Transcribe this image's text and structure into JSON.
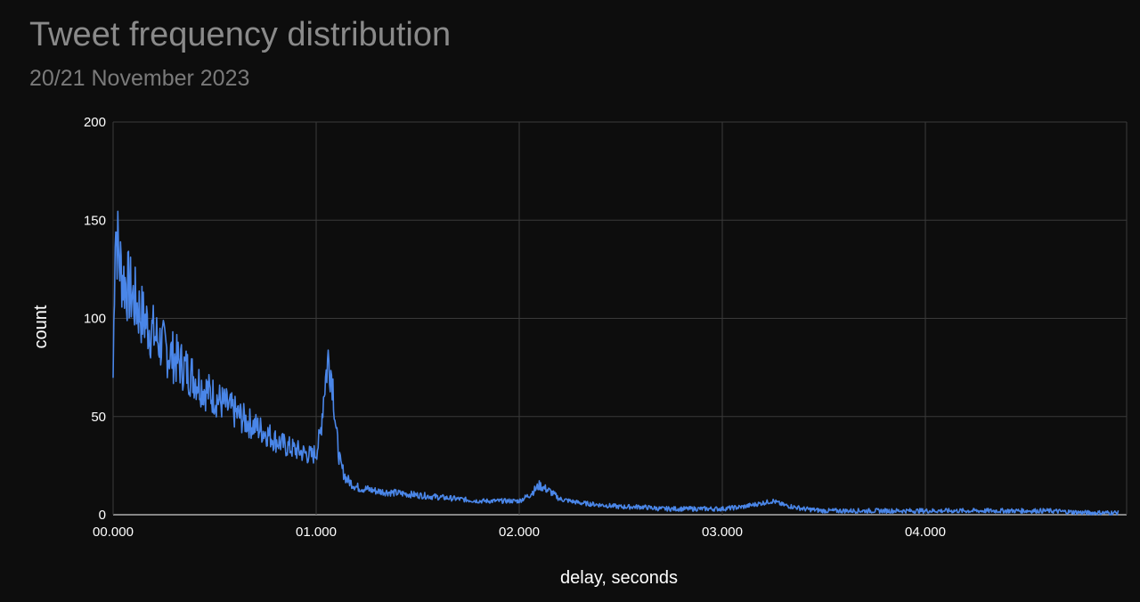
{
  "chart_data": {
    "type": "line",
    "title": "Tweet frequency distribution",
    "subtitle": "20/21 November 2023",
    "xlabel": "delay, seconds",
    "ylabel": "count",
    "xlim": [
      0,
      4.95
    ],
    "ylim": [
      0,
      200
    ],
    "x_ticks": [
      {
        "value": 0,
        "label": "00.000"
      },
      {
        "value": 1,
        "label": "01.000"
      },
      {
        "value": 2,
        "label": "02.000"
      },
      {
        "value": 3,
        "label": "03.000"
      },
      {
        "value": 4,
        "label": "04.000"
      }
    ],
    "y_ticks": [
      {
        "value": 0,
        "label": "0"
      },
      {
        "value": 50,
        "label": "50"
      },
      {
        "value": 100,
        "label": "100"
      },
      {
        "value": 150,
        "label": "150"
      },
      {
        "value": 200,
        "label": "200"
      }
    ],
    "grid": true,
    "legend": "none",
    "colors": {
      "series": "#4a86e8",
      "grid": "#3a3a3a",
      "background": "#0d0d0d"
    },
    "series": [
      {
        "x": [
          0.0,
          0.01,
          0.02,
          0.03,
          0.05,
          0.08,
          0.1,
          0.15,
          0.2,
          0.25,
          0.3,
          0.35,
          0.4,
          0.45,
          0.5,
          0.55,
          0.6,
          0.65,
          0.7,
          0.75,
          0.8,
          0.85,
          0.9,
          0.95,
          0.98,
          1.0,
          1.02,
          1.04,
          1.06,
          1.08,
          1.1,
          1.12,
          1.15,
          1.2,
          1.3,
          1.4,
          1.5,
          1.6,
          1.7,
          1.8,
          1.9,
          2.0,
          2.05,
          2.1,
          2.15,
          2.2,
          2.3,
          2.4,
          2.5,
          2.6,
          2.7,
          2.8,
          2.9,
          3.0,
          3.1,
          3.2,
          3.25,
          3.3,
          3.4,
          3.5,
          3.6,
          3.7,
          3.8,
          3.9,
          4.0,
          4.2,
          4.4,
          4.6,
          4.8,
          4.95
        ],
        "values": [
          70,
          150,
          140,
          130,
          120,
          115,
          110,
          100,
          92,
          85,
          80,
          75,
          70,
          64,
          60,
          56,
          52,
          48,
          45,
          42,
          38,
          35,
          33,
          31,
          30,
          32,
          40,
          65,
          80,
          70,
          40,
          25,
          18,
          14,
          12,
          11,
          10,
          9,
          8,
          7,
          7,
          7,
          10,
          15,
          12,
          8,
          6,
          5,
          4,
          4,
          3,
          3,
          3,
          3,
          4,
          6,
          7,
          5,
          3,
          2,
          2,
          2,
          2,
          2,
          2,
          2,
          2,
          2,
          1,
          1
        ]
      }
    ]
  }
}
